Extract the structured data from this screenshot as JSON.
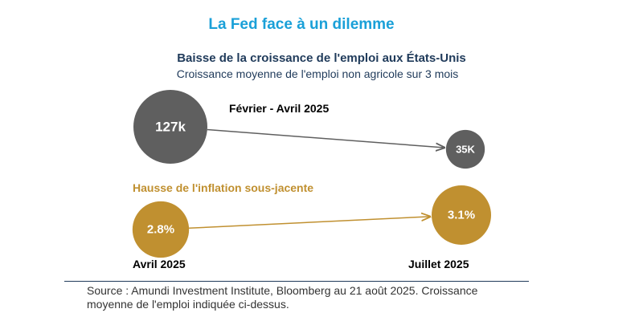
{
  "chart_data": [
    {
      "type": "bubble",
      "title": "La Fed face à un dilemme",
      "subtitle": "Baisse de la croissance de l'emploi aux États-Unis",
      "subtitle2": "Croissance moyenne de l'emploi non agricole sur 3 mois",
      "period_label": "Février - Avril 2025",
      "points": [
        {
          "label": "127k",
          "value": 127
        },
        {
          "label": "35K",
          "value": 35
        }
      ],
      "color": "#5f5f5f"
    },
    {
      "type": "bubble",
      "title": "Hausse de l'inflation sous-jacente",
      "points": [
        {
          "label": "2.8%",
          "value": 2.8,
          "x": "Avril 2025"
        },
        {
          "label": "3.1%",
          "value": 3.1,
          "x": "Juillet 2025"
        }
      ],
      "color": "#c09030"
    }
  ],
  "source": "Source : Amundi Investment Institute, Bloomberg au 21 août 2025. Croissance moyenne de l'emploi indiquée ci-dessus.",
  "colors": {
    "title": "#1aa0d8",
    "navy": "#1f3a5a",
    "gray": "#5f5f5f",
    "gold": "#c09030"
  }
}
